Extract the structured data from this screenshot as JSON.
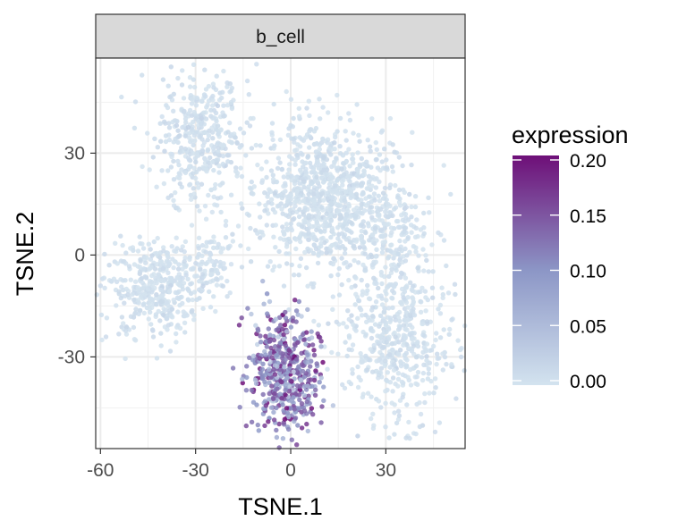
{
  "chart_data": {
    "type": "scatter",
    "facet_label": "b_cell",
    "xlabel": "TSNE.1",
    "ylabel": "TSNE.2",
    "xlim": [
      -61.5,
      55
    ],
    "ylim": [
      -57,
      58
    ],
    "x_ticks": [
      -60,
      -30,
      0,
      30
    ],
    "x_tick_labels": [
      "-60",
      "-30",
      "0",
      "30"
    ],
    "y_ticks": [
      -30,
      0,
      30
    ],
    "y_tick_labels": [
      "-30",
      "0",
      "30"
    ],
    "grid": true,
    "legend_position": "right",
    "color_scale": {
      "title": "expression",
      "min": 0,
      "max": 0.2,
      "breaks": [
        0,
        0.05,
        0.1,
        0.15,
        0.2
      ],
      "break_labels": [
        "0.00",
        "0.05",
        "0.10",
        "0.15",
        "0.20"
      ],
      "low_color": "#d3e3ef",
      "mid_color": "#8c96c6",
      "high_color": "#6e0f78"
    },
    "clusters": [
      {
        "cx": -29,
        "cy": 35,
        "sx": 7,
        "sy": 10,
        "n": 380,
        "expr": 0.005
      },
      {
        "cx": -42,
        "cy": -10,
        "sx": 8,
        "sy": 7,
        "n": 420,
        "expr": 0.003
      },
      {
        "cx": -25,
        "cy": -3,
        "sx": 4,
        "sy": 5,
        "n": 80,
        "expr": 0.004
      },
      {
        "cx": 11,
        "cy": 17,
        "sx": 11,
        "sy": 11,
        "n": 900,
        "expr": 0.004
      },
      {
        "cx": 30,
        "cy": 5,
        "sx": 7,
        "sy": 7,
        "n": 160,
        "expr": 0.004
      },
      {
        "cx": 33,
        "cy": -25,
        "sx": 8,
        "sy": 12,
        "n": 500,
        "expr": 0.003
      },
      {
        "cx": -2,
        "cy": -35,
        "sx": 5.5,
        "sy": 9,
        "n": 520,
        "expr": 0.12
      }
    ]
  }
}
